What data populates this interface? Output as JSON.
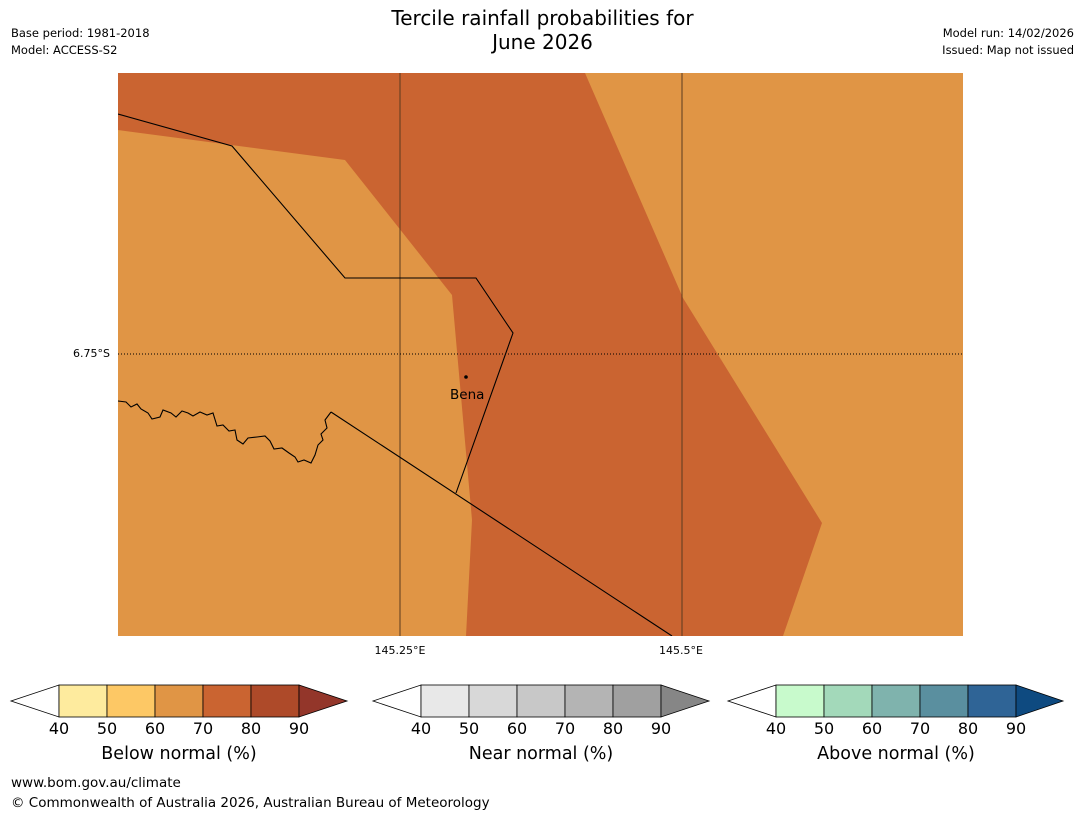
{
  "header": {
    "title_line1": "Tercile rainfall probabilities for",
    "title_line2": "June 2026",
    "base_period": "Base period: 1981-2018",
    "model": "Model: ACCESS-S2",
    "model_run": "Model run: 14/02/2026",
    "issued": "Issued: Map not issued"
  },
  "map": {
    "place_name": "Bena",
    "lat_label": "6.75°S",
    "lon_labels": [
      "145.25°E",
      "145.5°E"
    ],
    "probability_bands": [
      {
        "category": "Below normal",
        "range": "60-70",
        "color": "#E09545"
      },
      {
        "category": "Below normal",
        "range": "70-80",
        "color": "#CA6431"
      }
    ]
  },
  "colorbars": [
    {
      "name": "below-normal",
      "label": "Below normal (%)",
      "ticks": [
        "40",
        "50",
        "60",
        "70",
        "80",
        "90"
      ],
      "under_color": "#ffffff",
      "colors": [
        "#FEEB9E",
        "#FDC865",
        "#E09545",
        "#CA6431",
        "#AE4A29"
      ],
      "over_color": "#93362A"
    },
    {
      "name": "near-normal",
      "label": "Near normal (%)",
      "ticks": [
        "40",
        "50",
        "60",
        "70",
        "80",
        "90"
      ],
      "under_color": "#ffffff",
      "colors": [
        "#E8E8E8",
        "#D8D8D8",
        "#C8C8C8",
        "#B4B4B4",
        "#A0A0A0"
      ],
      "over_color": "#868686"
    },
    {
      "name": "above-normal",
      "label": "Above normal (%)",
      "ticks": [
        "40",
        "50",
        "60",
        "70",
        "80",
        "90"
      ],
      "under_color": "#ffffff",
      "colors": [
        "#C8FACC",
        "#A3D9BA",
        "#7FB3AD",
        "#5A8F9F",
        "#2F6496"
      ],
      "over_color": "#0E4A80"
    }
  ],
  "footer": {
    "url": "www.bom.gov.au/climate",
    "copyright": "© Commonwealth of Australia 2026, Australian Bureau of Meteorology"
  }
}
